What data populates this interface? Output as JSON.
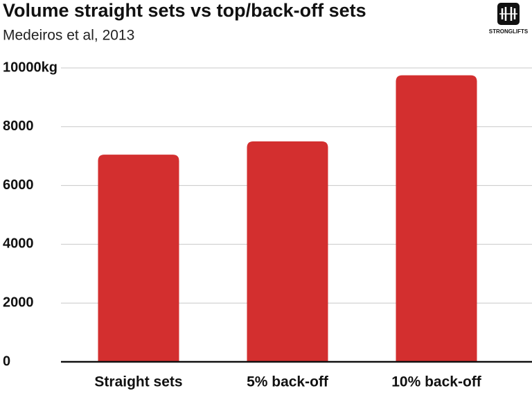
{
  "brand": "STRONGLIFTS",
  "chart_data": {
    "type": "bar",
    "title": "Volume straight sets vs top/back-off sets",
    "subtitle": "Medeiros et al, 2013",
    "categories": [
      "Straight sets",
      "5% back-off",
      "10% back-off"
    ],
    "values": [
      7050,
      7500,
      9750
    ],
    "color": "#d32f2f",
    "ylim": [
      0,
      10000
    ],
    "yticks": [
      0,
      2000,
      4000,
      6000,
      8000,
      {
        "value": 10000,
        "label": "10000kg"
      }
    ],
    "grid": true
  }
}
